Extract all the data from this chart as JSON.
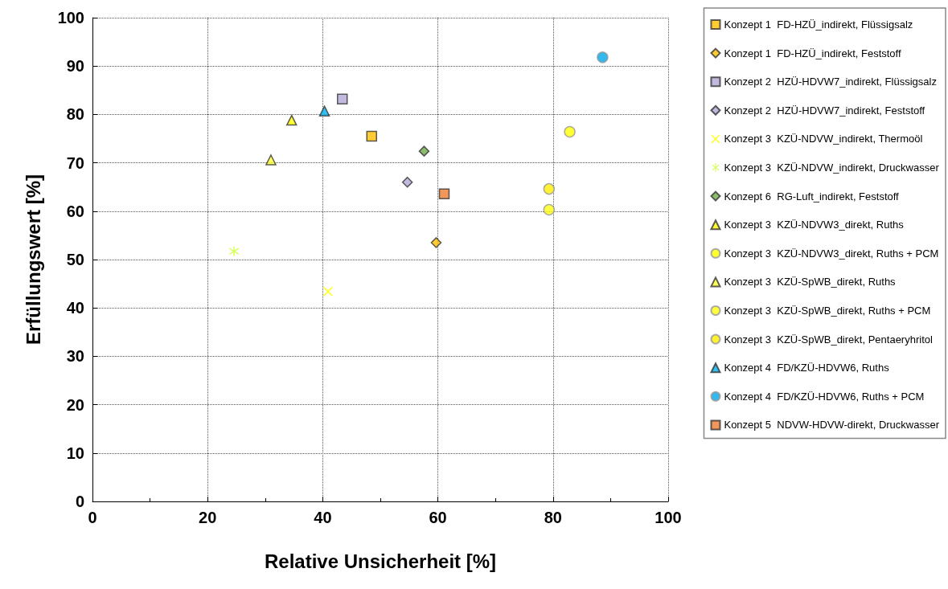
{
  "chart_data": {
    "type": "scatter",
    "xlabel": "Relative Unsicherheit [%]",
    "ylabel": "Erfüllungswert [%]",
    "xlim": [
      0,
      100
    ],
    "xticks": [
      0,
      20,
      40,
      60,
      80,
      100
    ],
    "ylim": [
      0,
      100
    ],
    "yticks": [
      0,
      10,
      20,
      30,
      40,
      50,
      60,
      70,
      80,
      90,
      100
    ],
    "grid": true,
    "legend": "right",
    "series": [
      {
        "name": "Konzept 1  FD-HZÜ_indirekt, Flüssigsalz",
        "color": "#ffc000",
        "marker": "square",
        "x": [
          48.5
        ],
        "values": [
          75.5
        ]
      },
      {
        "name": "Konzept 1  FD-HZÜ_indirekt, Feststoff",
        "color": "#ffc000",
        "marker": "diamond",
        "x": [
          59.7
        ],
        "values": [
          53.5
        ]
      },
      {
        "name": "Konzept 2  HZÜ-HDVW7_indirekt, Flüssigsalz",
        "color": "#b4a7d6",
        "marker": "square",
        "x": [
          43.4
        ],
        "values": [
          83.2
        ]
      },
      {
        "name": "Konzept 2  HZÜ-HDVW7_indirekt, Feststoff",
        "color": "#b4a7d6",
        "marker": "diamond",
        "x": [
          54.7
        ],
        "values": [
          66.0
        ]
      },
      {
        "name": "Konzept 3  KZÜ-NDVW_indirekt, Thermoöl",
        "color": "#ffff00",
        "marker": "cross",
        "x": [
          40.9
        ],
        "values": [
          43.4
        ]
      },
      {
        "name": "Konzept 3  KZÜ-NDVW_indirekt, Druckwasser",
        "color": "#ccff33",
        "marker": "star",
        "x": [
          24.6
        ],
        "values": [
          51.7
        ]
      },
      {
        "name": "Konzept 6  RG-Luft_indirekt, Feststoff",
        "color": "#70ad47",
        "marker": "diamond",
        "x": [
          57.6
        ],
        "values": [
          72.4
        ]
      },
      {
        "name": "Konzept 3  KZÜ-NDVW3_direkt, Ruths",
        "color": "#ffff00",
        "marker": "triangle",
        "x": [
          34.6
        ],
        "values": [
          78.8
        ]
      },
      {
        "name": "Konzept 3  KZÜ-NDVW3_direkt, Ruths + PCM",
        "color": "#ffff00",
        "marker": "circle",
        "x": [
          82.9
        ],
        "values": [
          76.4
        ]
      },
      {
        "name": "Konzept 3  KZÜ-SpWB_direkt, Ruths",
        "color": "#ffff33",
        "marker": "triangle",
        "x": [
          31.0
        ],
        "values": [
          70.6
        ]
      },
      {
        "name": "Konzept 3  KZÜ-SpWB_direkt, Ruths + PCM",
        "color": "#ffff11",
        "marker": "circle",
        "x": [
          79.3
        ],
        "values": [
          60.3
        ]
      },
      {
        "name": "Konzept 3  KZÜ-SpWB_direkt, Pentaeryhritol",
        "color": "#ffee00",
        "marker": "circle",
        "x": [
          79.3
        ],
        "values": [
          64.6
        ]
      },
      {
        "name": "Konzept 4  FD/KZÜ-HDVW6, Ruths",
        "color": "#00b0f0",
        "marker": "triangle",
        "x": [
          40.3
        ],
        "values": [
          80.7
        ]
      },
      {
        "name": "Konzept 4  FD/KZÜ-HDVW6, Ruths + PCM",
        "color": "#00a8e8",
        "marker": "circle",
        "x": [
          88.6
        ],
        "values": [
          91.8
        ]
      },
      {
        "name": "Konzept 5  NDVW-HDVW-direkt, Druckwasser",
        "color": "#ed7d31",
        "marker": "square",
        "x": [
          61.1
        ],
        "values": [
          63.6
        ]
      }
    ]
  }
}
